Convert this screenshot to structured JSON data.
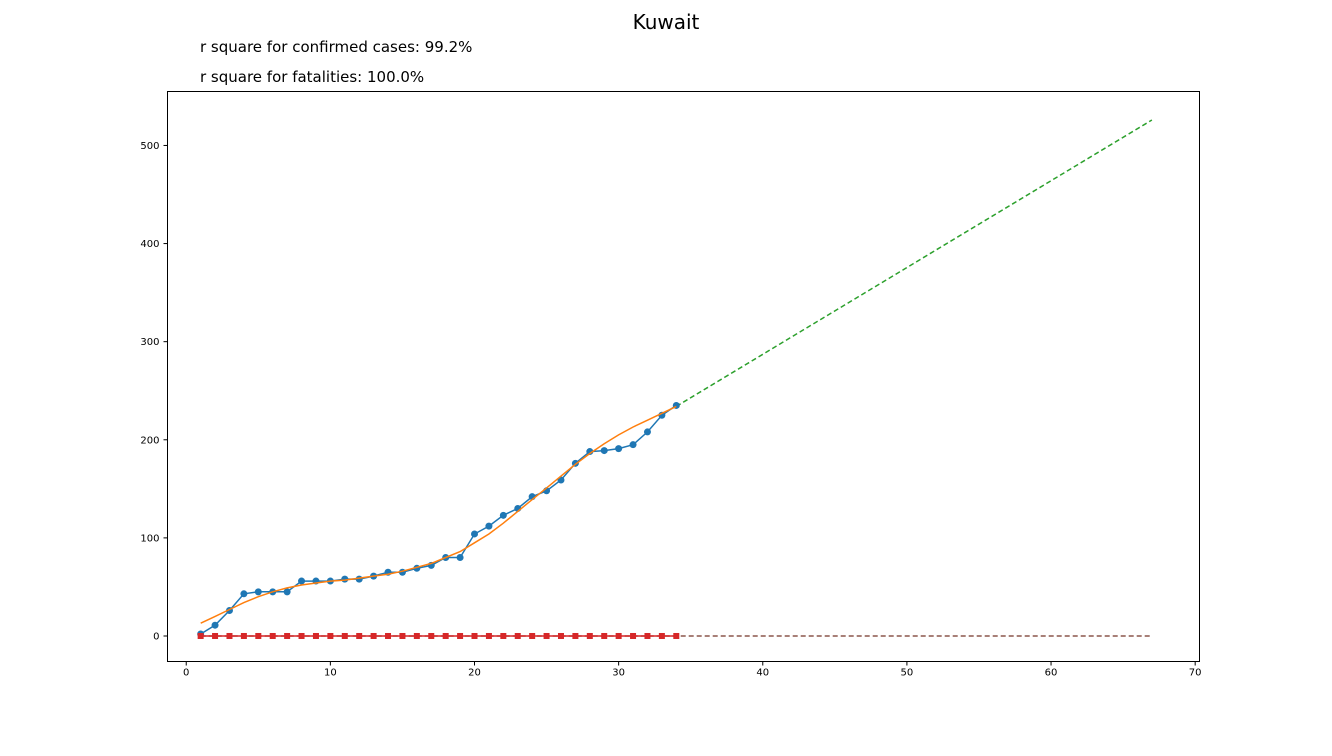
{
  "chart_data": {
    "type": "line",
    "title": "Kuwait",
    "annotations": [
      "r square for confirmed cases: 99.2%",
      "r square for fatalities: 100.0%"
    ],
    "xlim": [
      -1.3,
      70.3
    ],
    "ylim": [
      -26,
      555
    ],
    "x_ticks": [
      0,
      10,
      20,
      30,
      40,
      50,
      60,
      70
    ],
    "y_ticks": [
      0,
      100,
      200,
      300,
      400,
      500
    ],
    "grid": false,
    "colors": {
      "confirmed": "#1f77b4",
      "confirmed_fit": "#ff7f0e",
      "confirmed_projection": "#2ca02c",
      "fatalities": "#d62728",
      "fatalities_projection": "#8c564b"
    },
    "confirmed": {
      "x": [
        1,
        2,
        3,
        4,
        5,
        6,
        7,
        8,
        9,
        10,
        11,
        12,
        13,
        14,
        15,
        16,
        17,
        18,
        19,
        20,
        21,
        22,
        23,
        24,
        25,
        26,
        27,
        28,
        29,
        30,
        31,
        32,
        33,
        34
      ],
      "y": [
        2,
        11,
        26,
        43,
        45,
        45,
        45,
        56,
        56,
        56,
        58,
        58,
        61,
        65,
        65,
        69,
        72,
        80,
        80,
        104,
        112,
        123,
        130,
        142,
        148,
        159,
        176,
        188,
        189,
        191,
        195,
        208,
        225,
        235
      ]
    },
    "confirmed_fit": {
      "x": [
        1,
        2,
        3,
        4,
        5,
        6,
        7,
        8,
        9,
        10,
        11,
        12,
        13,
        14,
        15,
        16,
        17,
        18,
        19,
        20,
        21,
        22,
        23,
        24,
        25,
        26,
        27,
        28,
        29,
        30,
        31,
        32,
        33,
        34
      ],
      "y": [
        13,
        20,
        27,
        34,
        40,
        45,
        49,
        52,
        54,
        56,
        57,
        59,
        61,
        63,
        66,
        70,
        74,
        80,
        86,
        95,
        104,
        115,
        127,
        139,
        151,
        163,
        175,
        186,
        196,
        205,
        213,
        220,
        227,
        234
      ]
    },
    "confirmed_projection": {
      "x": [
        34,
        67
      ],
      "y": [
        234,
        526
      ]
    },
    "fatalities": {
      "x": [
        1,
        2,
        3,
        4,
        5,
        6,
        7,
        8,
        9,
        10,
        11,
        12,
        13,
        14,
        15,
        16,
        17,
        18,
        19,
        20,
        21,
        22,
        23,
        24,
        25,
        26,
        27,
        28,
        29,
        30,
        31,
        32,
        33,
        34
      ],
      "y": [
        0,
        0,
        0,
        0,
        0,
        0,
        0,
        0,
        0,
        0,
        0,
        0,
        0,
        0,
        0,
        0,
        0,
        0,
        0,
        0,
        0,
        0,
        0,
        0,
        0,
        0,
        0,
        0,
        0,
        0,
        0,
        0,
        0,
        0
      ]
    },
    "fatalities_projection": {
      "x": [
        1,
        67
      ],
      "y": [
        0,
        0
      ]
    }
  }
}
